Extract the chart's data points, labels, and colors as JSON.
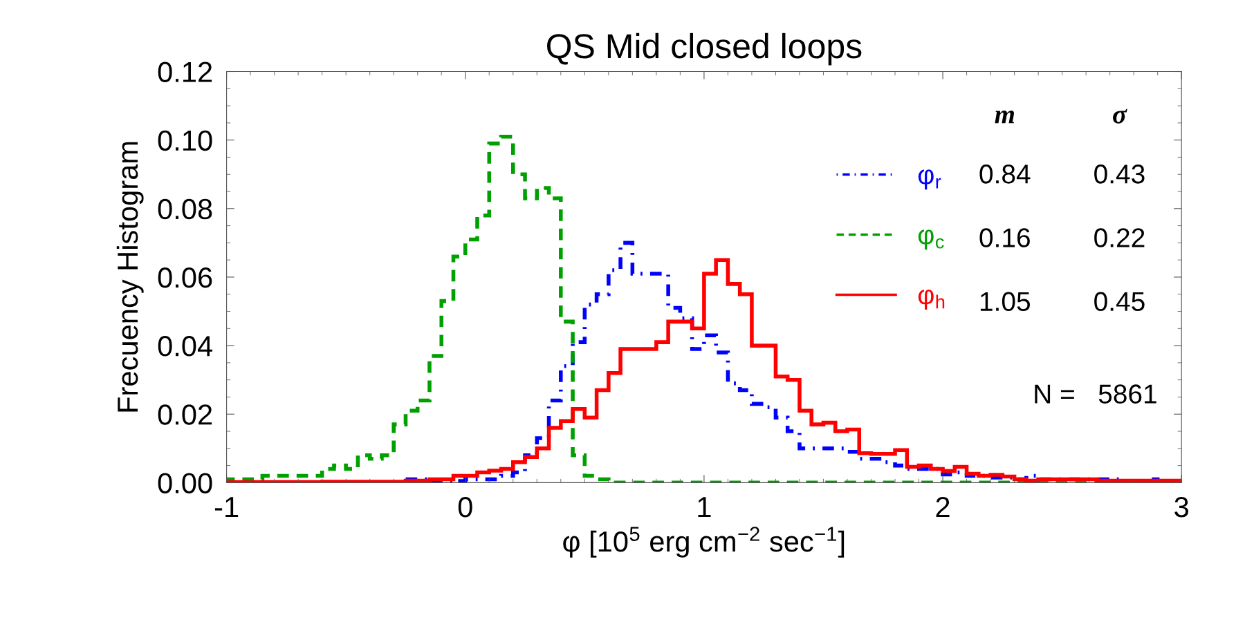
{
  "chart_data": {
    "type": "histogram",
    "title": "QS Mid closed loops",
    "xlabel": "φ [10$^{5}$ erg cm$^{−2}$ sec$^{−1}$]",
    "ylabel": "Frecuency Histogram",
    "bins": [
      -1,
      -0.95,
      -0.9,
      -0.85,
      -0.8,
      -0.75,
      -0.7,
      -0.65,
      -0.6,
      -0.55,
      -0.5,
      -0.45,
      -0.4,
      -0.35,
      -0.3,
      -0.25,
      -0.2,
      -0.15,
      -0.1,
      -0.05,
      0,
      0.05,
      0.1,
      0.15,
      0.2,
      0.25,
      0.3,
      0.35,
      0.4,
      0.45,
      0.5,
      0.55,
      0.6,
      0.65,
      0.7,
      0.75,
      0.8,
      0.85,
      0.9,
      0.95,
      1,
      1.05,
      1.1,
      1.15,
      1.2,
      1.25,
      1.3,
      1.35,
      1.4,
      1.45,
      1.5,
      1.55,
      1.6,
      1.65,
      1.7,
      1.75,
      1.8,
      1.85,
      1.9,
      1.95,
      2,
      2.05,
      2.1,
      2.15,
      2.2,
      2.25,
      2.3,
      2.35,
      2.4,
      2.45,
      2.5,
      2.55,
      2.6,
      2.65,
      2.7,
      2.75,
      2.8,
      2.85,
      2.9,
      2.95,
      3
    ],
    "series": [
      {
        "name": "φ$_{r}$",
        "color": "#0000ff",
        "line_style": "dashdot",
        "values": [
          0,
          0,
          0,
          0,
          0,
          0,
          0,
          0,
          0,
          0,
          0,
          0,
          0,
          0,
          0,
          0.001,
          0.001,
          0,
          0,
          0.0005,
          0.001,
          0.001,
          0.001,
          0.002,
          0.003,
          0.008,
          0.013,
          0.024,
          0.034,
          0.041,
          0.052,
          0.055,
          0.062,
          0.07,
          0.061,
          0.061,
          0.061,
          0.051,
          0.048,
          0.039,
          0.043,
          0.038,
          0.029,
          0.027,
          0.023,
          0.022,
          0.019,
          0.015,
          0.01,
          0.01,
          0.01,
          0.01,
          0.009,
          0.007,
          0.007,
          0.006,
          0.005,
          0.004,
          0.004,
          0.004,
          0.0024,
          0.003,
          0.002,
          0.002,
          0.0015,
          0.0015,
          0.001,
          0.002,
          0.001,
          0.001,
          0.001,
          0.001,
          0.001,
          0.001,
          0.001,
          0.0005,
          0.0005,
          0.001,
          0.0005,
          0.0005
        ]
      },
      {
        "name": "φ$_{c}$",
        "color": "#00a000",
        "line_style": "dashed",
        "values": [
          0.001,
          0.001,
          0.001,
          0.002,
          0.002,
          0.002,
          0.002,
          0.002,
          0.004,
          0.005,
          0.004,
          0.008,
          0.007,
          0.008,
          0.017,
          0.021,
          0.024,
          0.037,
          0.053,
          0.066,
          0.071,
          0.078,
          0.099,
          0.101,
          0.09,
          0.083,
          0.086,
          0.083,
          0.047,
          0.008,
          0.002,
          0.001,
          0,
          0,
          0,
          0,
          0,
          0,
          0,
          0,
          0,
          0,
          0,
          0,
          0,
          0,
          0,
          0,
          0,
          0,
          0,
          0,
          0,
          0,
          0,
          0,
          0,
          0,
          0,
          0,
          0,
          0,
          0,
          0,
          0,
          0,
          0,
          0,
          0,
          0,
          0,
          0,
          0,
          0,
          0,
          0,
          0,
          0,
          0,
          0
        ]
      },
      {
        "name": "φ$_{h}$",
        "color": "#ff0000",
        "line_style": "solid",
        "values": [
          0.0002,
          0.0002,
          0.0002,
          0.0002,
          0.0002,
          0.0002,
          0.0002,
          0.0002,
          0.0003,
          0.0003,
          0.0003,
          0.0003,
          0.0003,
          0.0003,
          0.0003,
          0.0006,
          0.0006,
          0.001,
          0.001,
          0.002,
          0.002,
          0.003,
          0.0035,
          0.004,
          0.006,
          0.0075,
          0.01,
          0.016,
          0.018,
          0.0215,
          0.019,
          0.027,
          0.032,
          0.039,
          0.039,
          0.039,
          0.041,
          0.047,
          0.047,
          0.045,
          0.061,
          0.065,
          0.058,
          0.055,
          0.04,
          0.04,
          0.031,
          0.03,
          0.021,
          0.017,
          0.0175,
          0.015,
          0.0155,
          0.0086,
          0.0084,
          0.0084,
          0.0095,
          0.0046,
          0.005,
          0.004,
          0.0034,
          0.0046,
          0.0026,
          0.002,
          0.0023,
          0.0018,
          0.001,
          0.0006,
          0.001,
          0.001,
          0.001,
          0.001,
          0.001,
          0.0006,
          0.0006,
          0.0006,
          0.0006,
          0.0006,
          0.0006,
          0.0006
        ]
      }
    ],
    "xlim": [
      -1,
      3
    ],
    "xticks": [
      -1,
      0,
      1,
      2,
      3
    ],
    "ylim": [
      0,
      0.12
    ],
    "yticks": [
      {
        "value": 0,
        "label": "0.00"
      },
      {
        "value": 0.02,
        "label": "0.02"
      },
      {
        "value": 0.04,
        "label": "0.04"
      },
      {
        "value": 0.06,
        "label": "0.06"
      },
      {
        "value": 0.08,
        "label": "0.08"
      },
      {
        "value": 0.1,
        "label": "0.10"
      },
      {
        "value": 0.12,
        "label": "0.12"
      }
    ],
    "legend": "top right",
    "annotations": [
      "m",
      "σ",
      "0.84",
      "0.43",
      "0.16",
      "0.22",
      "1.05",
      "0.45",
      "N =   5861"
    ]
  }
}
